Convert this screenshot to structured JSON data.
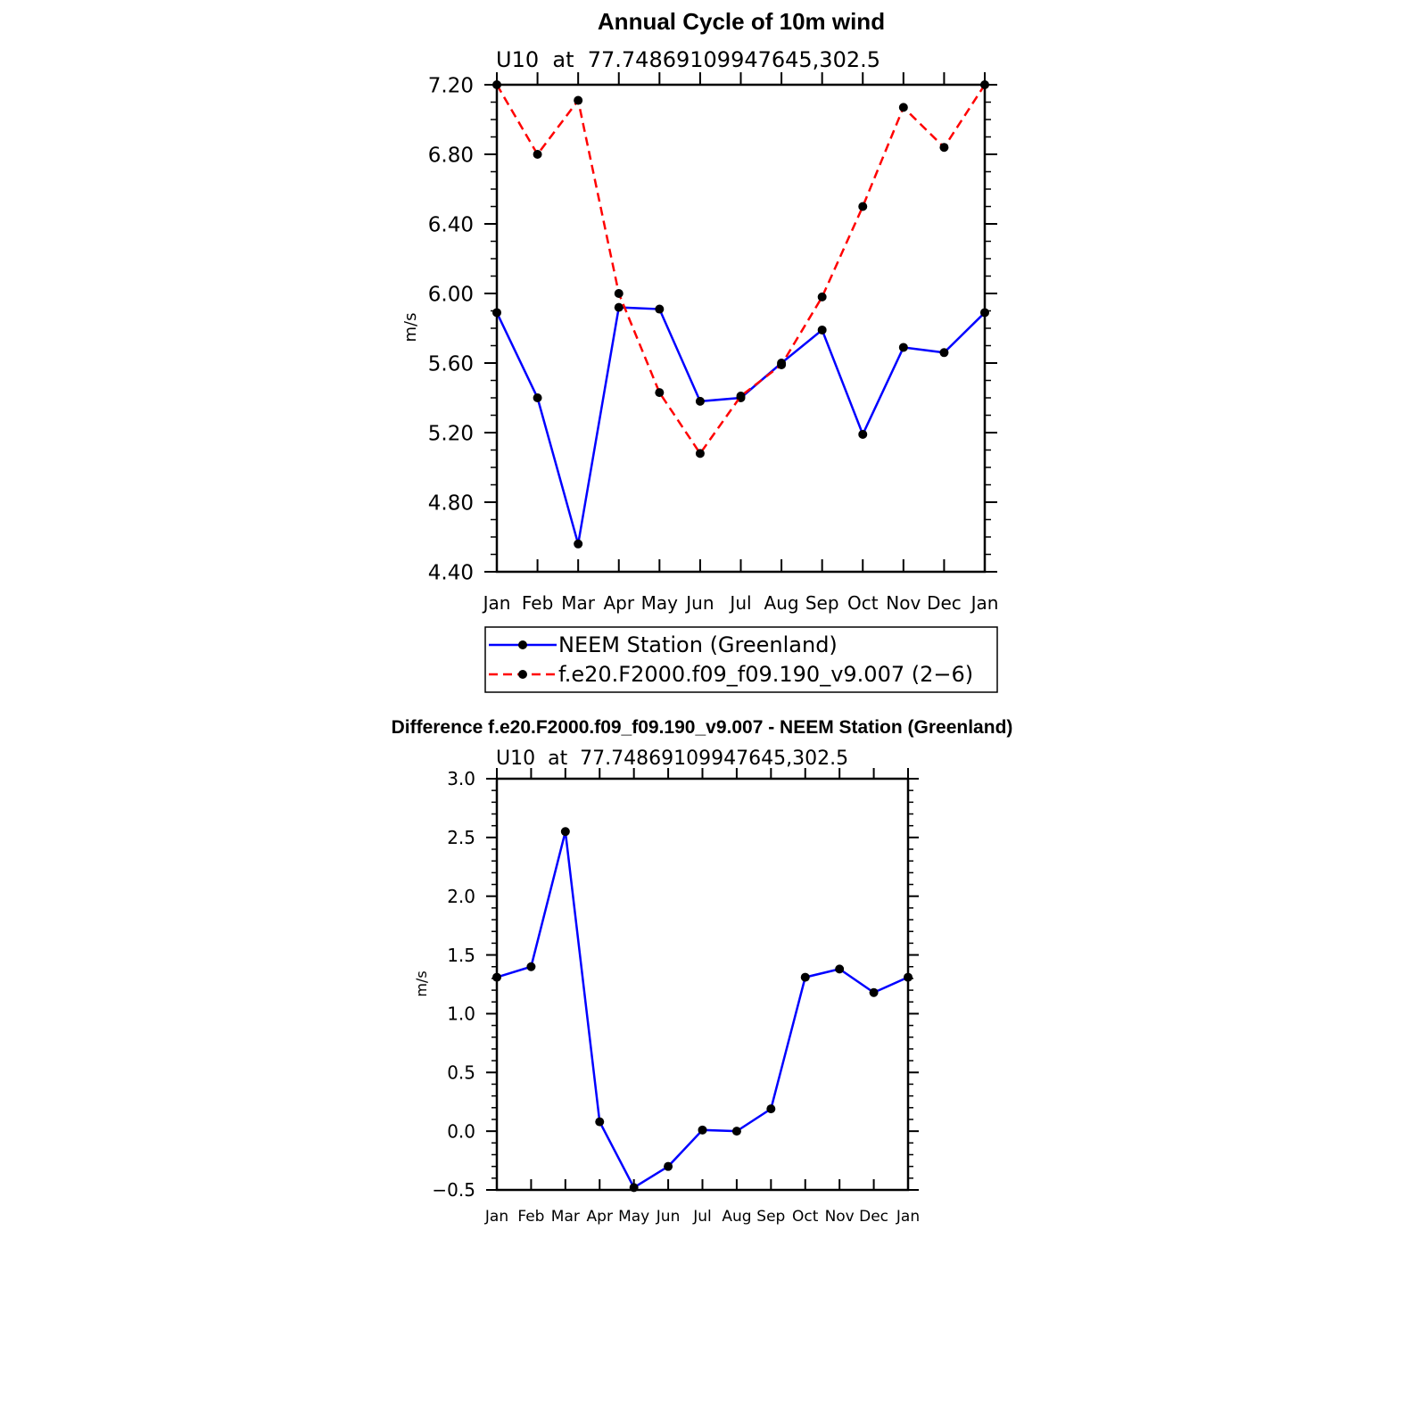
{
  "chart_data": [
    {
      "type": "line",
      "title": "Annual Cycle of 10m wind",
      "subtitle": "U10  at  77.74869109947645,302.5",
      "xlabel": "",
      "ylabel": "m/s",
      "categories": [
        "Jan",
        "Feb",
        "Mar",
        "Apr",
        "May",
        "Jun",
        "Jul",
        "Aug",
        "Sep",
        "Oct",
        "Nov",
        "Dec",
        "Jan"
      ],
      "ylim": [
        4.4,
        7.2
      ],
      "yticks": [
        "4.40",
        "4.80",
        "5.20",
        "5.60",
        "6.00",
        "6.40",
        "6.80",
        "7.20"
      ],
      "ytick_values": [
        4.4,
        4.8,
        5.2,
        5.6,
        6.0,
        6.4,
        6.8,
        7.2
      ],
      "series": [
        {
          "name": "NEEM Station (Greenland)",
          "color": "#0000ff",
          "dash": "solid",
          "values": [
            5.89,
            5.4,
            4.56,
            5.92,
            5.91,
            5.38,
            5.4,
            5.6,
            5.79,
            5.19,
            5.69,
            5.66,
            5.89
          ]
        },
        {
          "name": "f.e20.F2000.f09_f09.190_v9.007 (2−6)",
          "color": "#ff0000",
          "dash": "dashed",
          "values": [
            7.2,
            6.8,
            7.11,
            6.0,
            5.43,
            5.08,
            5.41,
            5.59,
            5.98,
            6.5,
            7.07,
            6.84,
            7.2
          ]
        }
      ],
      "legend": "bottom"
    },
    {
      "type": "line",
      "title": "Difference f.e20.F2000.f09_f09.190_v9.007 - NEEM Station (Greenland)",
      "subtitle": "U10  at  77.74869109947645,302.5",
      "xlabel": "",
      "ylabel": "m/s",
      "categories": [
        "Jan",
        "Feb",
        "Mar",
        "Apr",
        "May",
        "Jun",
        "Jul",
        "Aug",
        "Sep",
        "Oct",
        "Nov",
        "Dec",
        "Jan"
      ],
      "ylim": [
        -0.5,
        3.0
      ],
      "yticks": [
        "−0.5",
        "0.0",
        "0.5",
        "1.0",
        "1.5",
        "2.0",
        "2.5",
        "3.0"
      ],
      "ytick_values": [
        -0.5,
        0.0,
        0.5,
        1.0,
        1.5,
        2.0,
        2.5,
        3.0
      ],
      "series": [
        {
          "color": "#0000ff",
          "dash": "solid",
          "values": [
            1.31,
            1.4,
            2.55,
            0.08,
            -0.48,
            -0.3,
            0.01,
            0.0,
            0.19,
            1.31,
            1.38,
            1.18,
            1.31
          ]
        }
      ]
    }
  ]
}
